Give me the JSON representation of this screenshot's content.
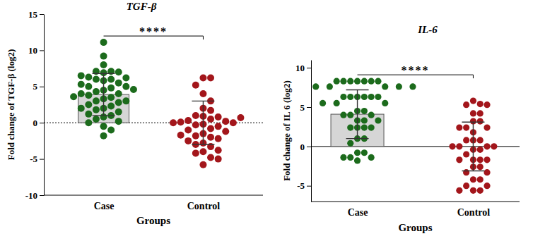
{
  "chart_data": [
    {
      "type": "bar",
      "title": "TGF-β",
      "x_label": "Groups",
      "y_label": "Fold change of TGF-β (log2)",
      "categories": [
        "Case",
        "Control"
      ],
      "values": [
        3.9,
        0.0
      ],
      "error": [
        2.9,
        3.0
      ],
      "points": [
        [
          11.1,
          9.2,
          8.0,
          7.1,
          7.1,
          7.0,
          6.9,
          6.3,
          6.2,
          6.0,
          6.0,
          5.8,
          5.5,
          5.3,
          5.0,
          5.0,
          4.8,
          4.5,
          4.3,
          4.0,
          4.0,
          3.8,
          3.5,
          3.3,
          3.0,
          3.0,
          2.8,
          2.5,
          2.3,
          2.0,
          2.0,
          1.8,
          1.5,
          1.0,
          0.8,
          0.5,
          0.2,
          0.0,
          -0.5,
          -1.0,
          -1.8,
          6.5,
          4.6,
          3.6,
          1.2
        ],
        [
          6.2,
          6.2,
          5.2,
          4.0,
          3.0,
          2.0,
          1.7,
          1.0,
          0.9,
          0.8,
          0.5,
          0.3,
          0.2,
          0.1,
          0.0,
          0.0,
          -0.2,
          -0.3,
          -0.5,
          -0.8,
          -1.0,
          -1.2,
          -1.5,
          -1.8,
          -2.0,
          -2.2,
          -2.5,
          -2.8,
          -3.0,
          -3.3,
          -3.8,
          -4.0,
          -4.2,
          -4.8,
          -5.0,
          -5.8,
          0.7,
          -1.7
        ]
      ],
      "colors": [
        "#1c6b1c",
        "#a3161b"
      ],
      "ylim": [
        -10,
        15
      ],
      "yticks": [
        -10,
        -5,
        0,
        5,
        10,
        15
      ],
      "annotation": "****"
    },
    {
      "type": "bar",
      "title": "IL-6",
      "x_label": "Groups",
      "y_label": "Fold change of IL 6 (log2)",
      "categories": [
        "Case",
        "Control"
      ],
      "values": [
        4.1,
        0.0
      ],
      "error": [
        3.1,
        3.1
      ],
      "points": [
        [
          8.3,
          8.3,
          8.3,
          8.3,
          8.3,
          8.3,
          8.3,
          7.6,
          7.6,
          7.6,
          7.6,
          7.6,
          6.3,
          6.3,
          6.3,
          6.3,
          6.3,
          6.3,
          5.5,
          5.5,
          5.5,
          4.5,
          4.5,
          4.0,
          4.0,
          4.0,
          3.3,
          3.3,
          3.3,
          2.4,
          2.4,
          2.4,
          2.4,
          1.0,
          1.0,
          0.4,
          -0.8,
          -0.8,
          -1.4,
          -1.4,
          -1.4,
          -1.8
        ],
        [
          5.8,
          5.4,
          5.3,
          5.3,
          4.2,
          4.2,
          3.2,
          3.2,
          2.4,
          2.4,
          2.4,
          1.8,
          0.8,
          0.8,
          0.8,
          0.0,
          0.0,
          0.0,
          0.0,
          -0.4,
          -0.4,
          -1.0,
          -1.7,
          -1.7,
          -1.7,
          -1.7,
          -2.6,
          -2.6,
          -3.3,
          -3.3,
          -4.2,
          -4.2,
          -5.0,
          -5.0,
          -5.6,
          -5.6,
          -5.6
        ]
      ],
      "colors": [
        "#1c6b1c",
        "#a3161b"
      ],
      "ylim": [
        -7,
        11
      ],
      "yticks": [
        -5,
        0,
        5,
        10
      ],
      "annotation": "****"
    }
  ]
}
